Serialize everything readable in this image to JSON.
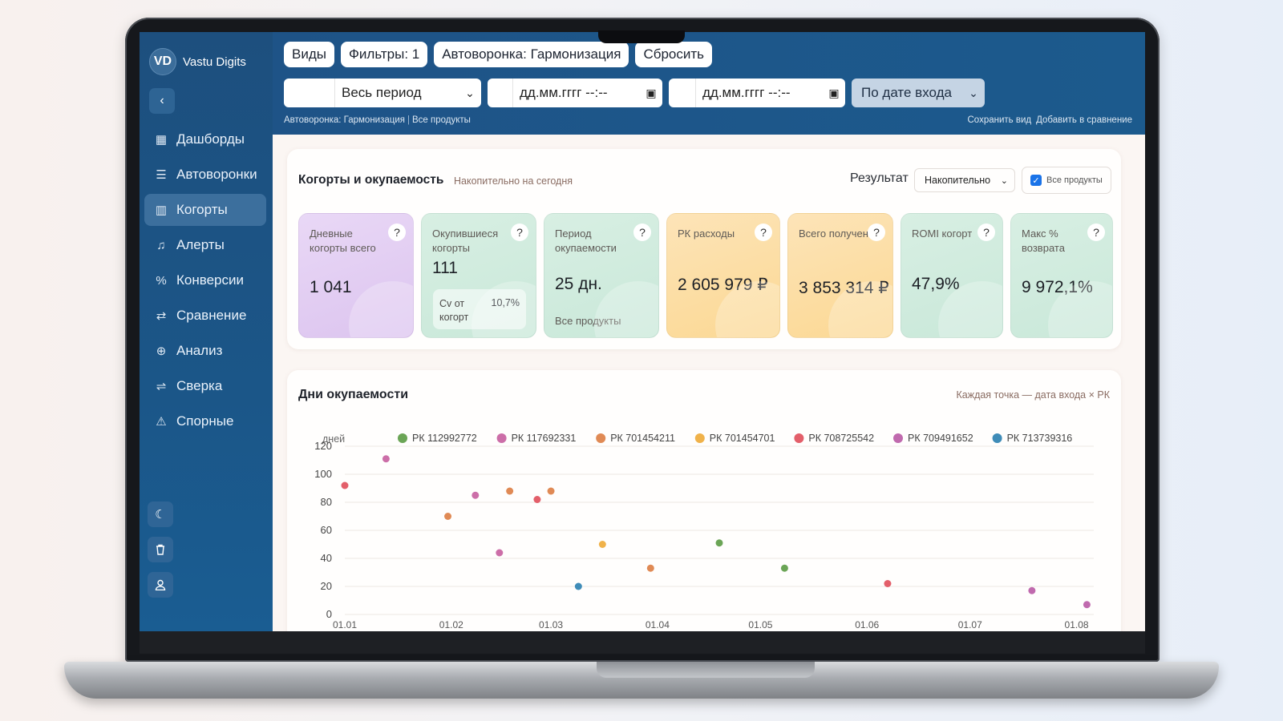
{
  "brand": {
    "initials": "VD",
    "name": "Vastu Digits"
  },
  "sidebar": {
    "items": [
      {
        "label": "Дашборды",
        "icon": "dashboard-icon"
      },
      {
        "label": "Автоворонки",
        "icon": "funnel-icon"
      },
      {
        "label": "Когорты",
        "icon": "cohort-chart-icon",
        "active": true
      },
      {
        "label": "Алерты",
        "icon": "bell-icon"
      },
      {
        "label": "Конверсии",
        "icon": "percent-icon"
      },
      {
        "label": "Сравнение",
        "icon": "swap-icon"
      },
      {
        "label": "Анализ",
        "icon": "zoom-icon"
      },
      {
        "label": "Сверка",
        "icon": "reconcile-icon"
      },
      {
        "label": "Спорные",
        "icon": "warning-icon"
      }
    ]
  },
  "topbar": {
    "chips": [
      "Виды",
      "Фильтры: 1",
      "Автоворонка: Гармонизация",
      "Сбросить"
    ],
    "period": "Весь период",
    "date_from_placeholder": "дд.мм.гггг --:--",
    "date_to_placeholder": "дд.мм.гггг --:--",
    "mode": "По дате входа",
    "crumb_funnel": "Автоворонка: Гармонизация",
    "crumb_products": "Все продукты",
    "save_view": "Сохранить вид",
    "add_compare": "Добавить в сравнение"
  },
  "kpi_section": {
    "title": "Когорты и окупаемость",
    "subtitle": "Накопительно на сегодня",
    "result_label": "Результат",
    "result_value": "Накопительно",
    "all_products": "Все продукты",
    "cards": [
      {
        "label": "Дневные когорты всего",
        "value": "1 041",
        "color": "purple"
      },
      {
        "label": "Окупившиеся когорты",
        "value": "111",
        "color": "green",
        "inner_label": "Cv от когорт",
        "inner_value": "10,7%"
      },
      {
        "label": "Период окупаемости",
        "value": "25 дн.",
        "color": "green",
        "note": "Все продукты"
      },
      {
        "label": "РК расходы",
        "value": "2 605 979 ₽",
        "color": "orange"
      },
      {
        "label": "Всего получено",
        "value": "3 853 314 ₽",
        "color": "orange"
      },
      {
        "label": "ROMI когорт",
        "value": "47,9%",
        "color": "green"
      },
      {
        "label": "Макс % возврата",
        "value": "9 972,1%",
        "color": "green"
      }
    ],
    "help": "?"
  },
  "chart_section": {
    "title": "Дни окупаемости",
    "note": "Каждая точка — дата входа × РК"
  },
  "chart_data": {
    "type": "scatter",
    "ylabel": "дней",
    "ylim": [
      0,
      120
    ],
    "yticks": [
      0,
      20,
      40,
      60,
      80,
      100,
      120
    ],
    "xticks": [
      "01.01",
      "01.02",
      "01.03",
      "01.04",
      "01.05",
      "01.06",
      "01.07",
      "01.08"
    ],
    "xlim": [
      "2024-01-01",
      "2024-08-06"
    ],
    "grid": true,
    "legend_position": "top",
    "series": [
      {
        "name": "РК 112992772",
        "color": "#6ba556",
        "points": [
          [
            "2024-04-19",
            51
          ],
          [
            "2024-05-08",
            33
          ]
        ]
      },
      {
        "name": "РК 117692331",
        "color": "#cc6ea8",
        "points": [
          [
            "2024-01-13",
            111
          ],
          [
            "2024-02-08",
            85
          ],
          [
            "2024-02-15",
            44
          ]
        ]
      },
      {
        "name": "РК 701454211",
        "color": "#e08a55",
        "points": [
          [
            "2024-01-31",
            70
          ],
          [
            "2024-02-18",
            88
          ],
          [
            "2024-03-01",
            88
          ],
          [
            "2024-03-30",
            33
          ]
        ]
      },
      {
        "name": "РК 701454701",
        "color": "#f0b24a",
        "points": [
          [
            "2024-03-16",
            50
          ]
        ]
      },
      {
        "name": "РК 708725542",
        "color": "#e35f6a",
        "points": [
          [
            "2024-01-01",
            92
          ],
          [
            "2024-02-26",
            82
          ],
          [
            "2024-06-07",
            22
          ]
        ]
      },
      {
        "name": "РК 709491652",
        "color": "#c06aae",
        "points": [
          [
            "2024-07-19",
            17
          ],
          [
            "2024-08-04",
            7
          ]
        ]
      },
      {
        "name": "РК 713739316",
        "color": "#3f8cb8",
        "points": [
          [
            "2024-03-09",
            20
          ]
        ]
      }
    ]
  }
}
